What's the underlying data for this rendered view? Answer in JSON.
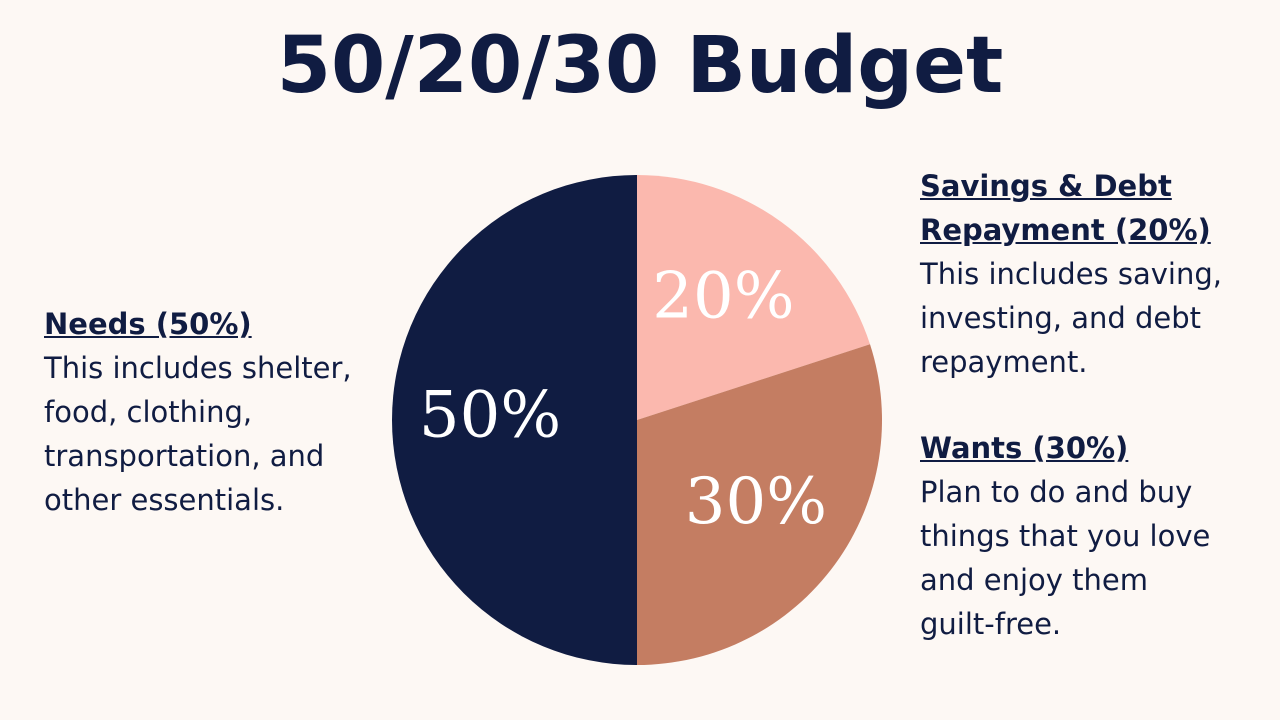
{
  "chart_data": {
    "type": "pie",
    "title": "50/20/30 Budget",
    "values": [
      20,
      30,
      50
    ],
    "value_labels": [
      "20%",
      "30%",
      "50%"
    ],
    "colors": [
      "#fbb8ae",
      "#c47d62",
      "#101c42"
    ],
    "annotations": [
      {
        "heading": [
          "Needs (50%)"
        ],
        "body": [
          "This includes shelter,",
          "food, clothing,",
          "transportation, and",
          "other essentials."
        ]
      },
      {
        "heading": [
          "Savings & Debt",
          "Repayment (20%)"
        ],
        "body": [
          "This includes saving,",
          "investing, and debt",
          "repayment."
        ]
      },
      {
        "heading": [
          "Wants (30%)"
        ],
        "body": [
          "Plan to do and buy",
          "things that you love",
          "and enjoy them",
          "guilt-free."
        ]
      }
    ]
  }
}
